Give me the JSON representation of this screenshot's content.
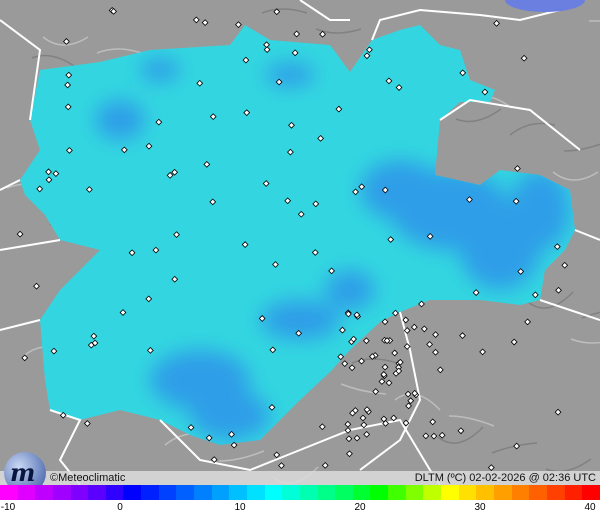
{
  "map": {
    "region_color": "#33d6e0",
    "cold_color": "#2f9ee8",
    "background_color": "#9a9a9a",
    "border_color": "#ffffff",
    "station_marker": "diamond-icon"
  },
  "infobar": {
    "credit": "©Meteoclimatic",
    "title": "DLTM  (ºC)  02-02-2026 @ 02:36 UTC"
  },
  "logo": {
    "text": "m"
  },
  "legend": {
    "min": -10,
    "max": 40,
    "tick_labels": [
      "-10",
      "0",
      "10",
      "20",
      "30",
      "40"
    ],
    "colors": [
      "#ff00ff",
      "#e000ff",
      "#c000ff",
      "#a000ff",
      "#8000ff",
      "#5a00ff",
      "#3000ff",
      "#0000ff",
      "#0020ff",
      "#0040ff",
      "#0060ff",
      "#0080ff",
      "#00a0ff",
      "#00c0ff",
      "#00e0ff",
      "#00ffff",
      "#00ffd8",
      "#00ffb0",
      "#00ff88",
      "#00ff60",
      "#00ff30",
      "#00ff00",
      "#40ff00",
      "#80ff00",
      "#c0ff00",
      "#ffff00",
      "#ffe000",
      "#ffc000",
      "#ffa000",
      "#ff8000",
      "#ff6000",
      "#ff4000",
      "#ff2000",
      "#ff0000"
    ]
  }
}
